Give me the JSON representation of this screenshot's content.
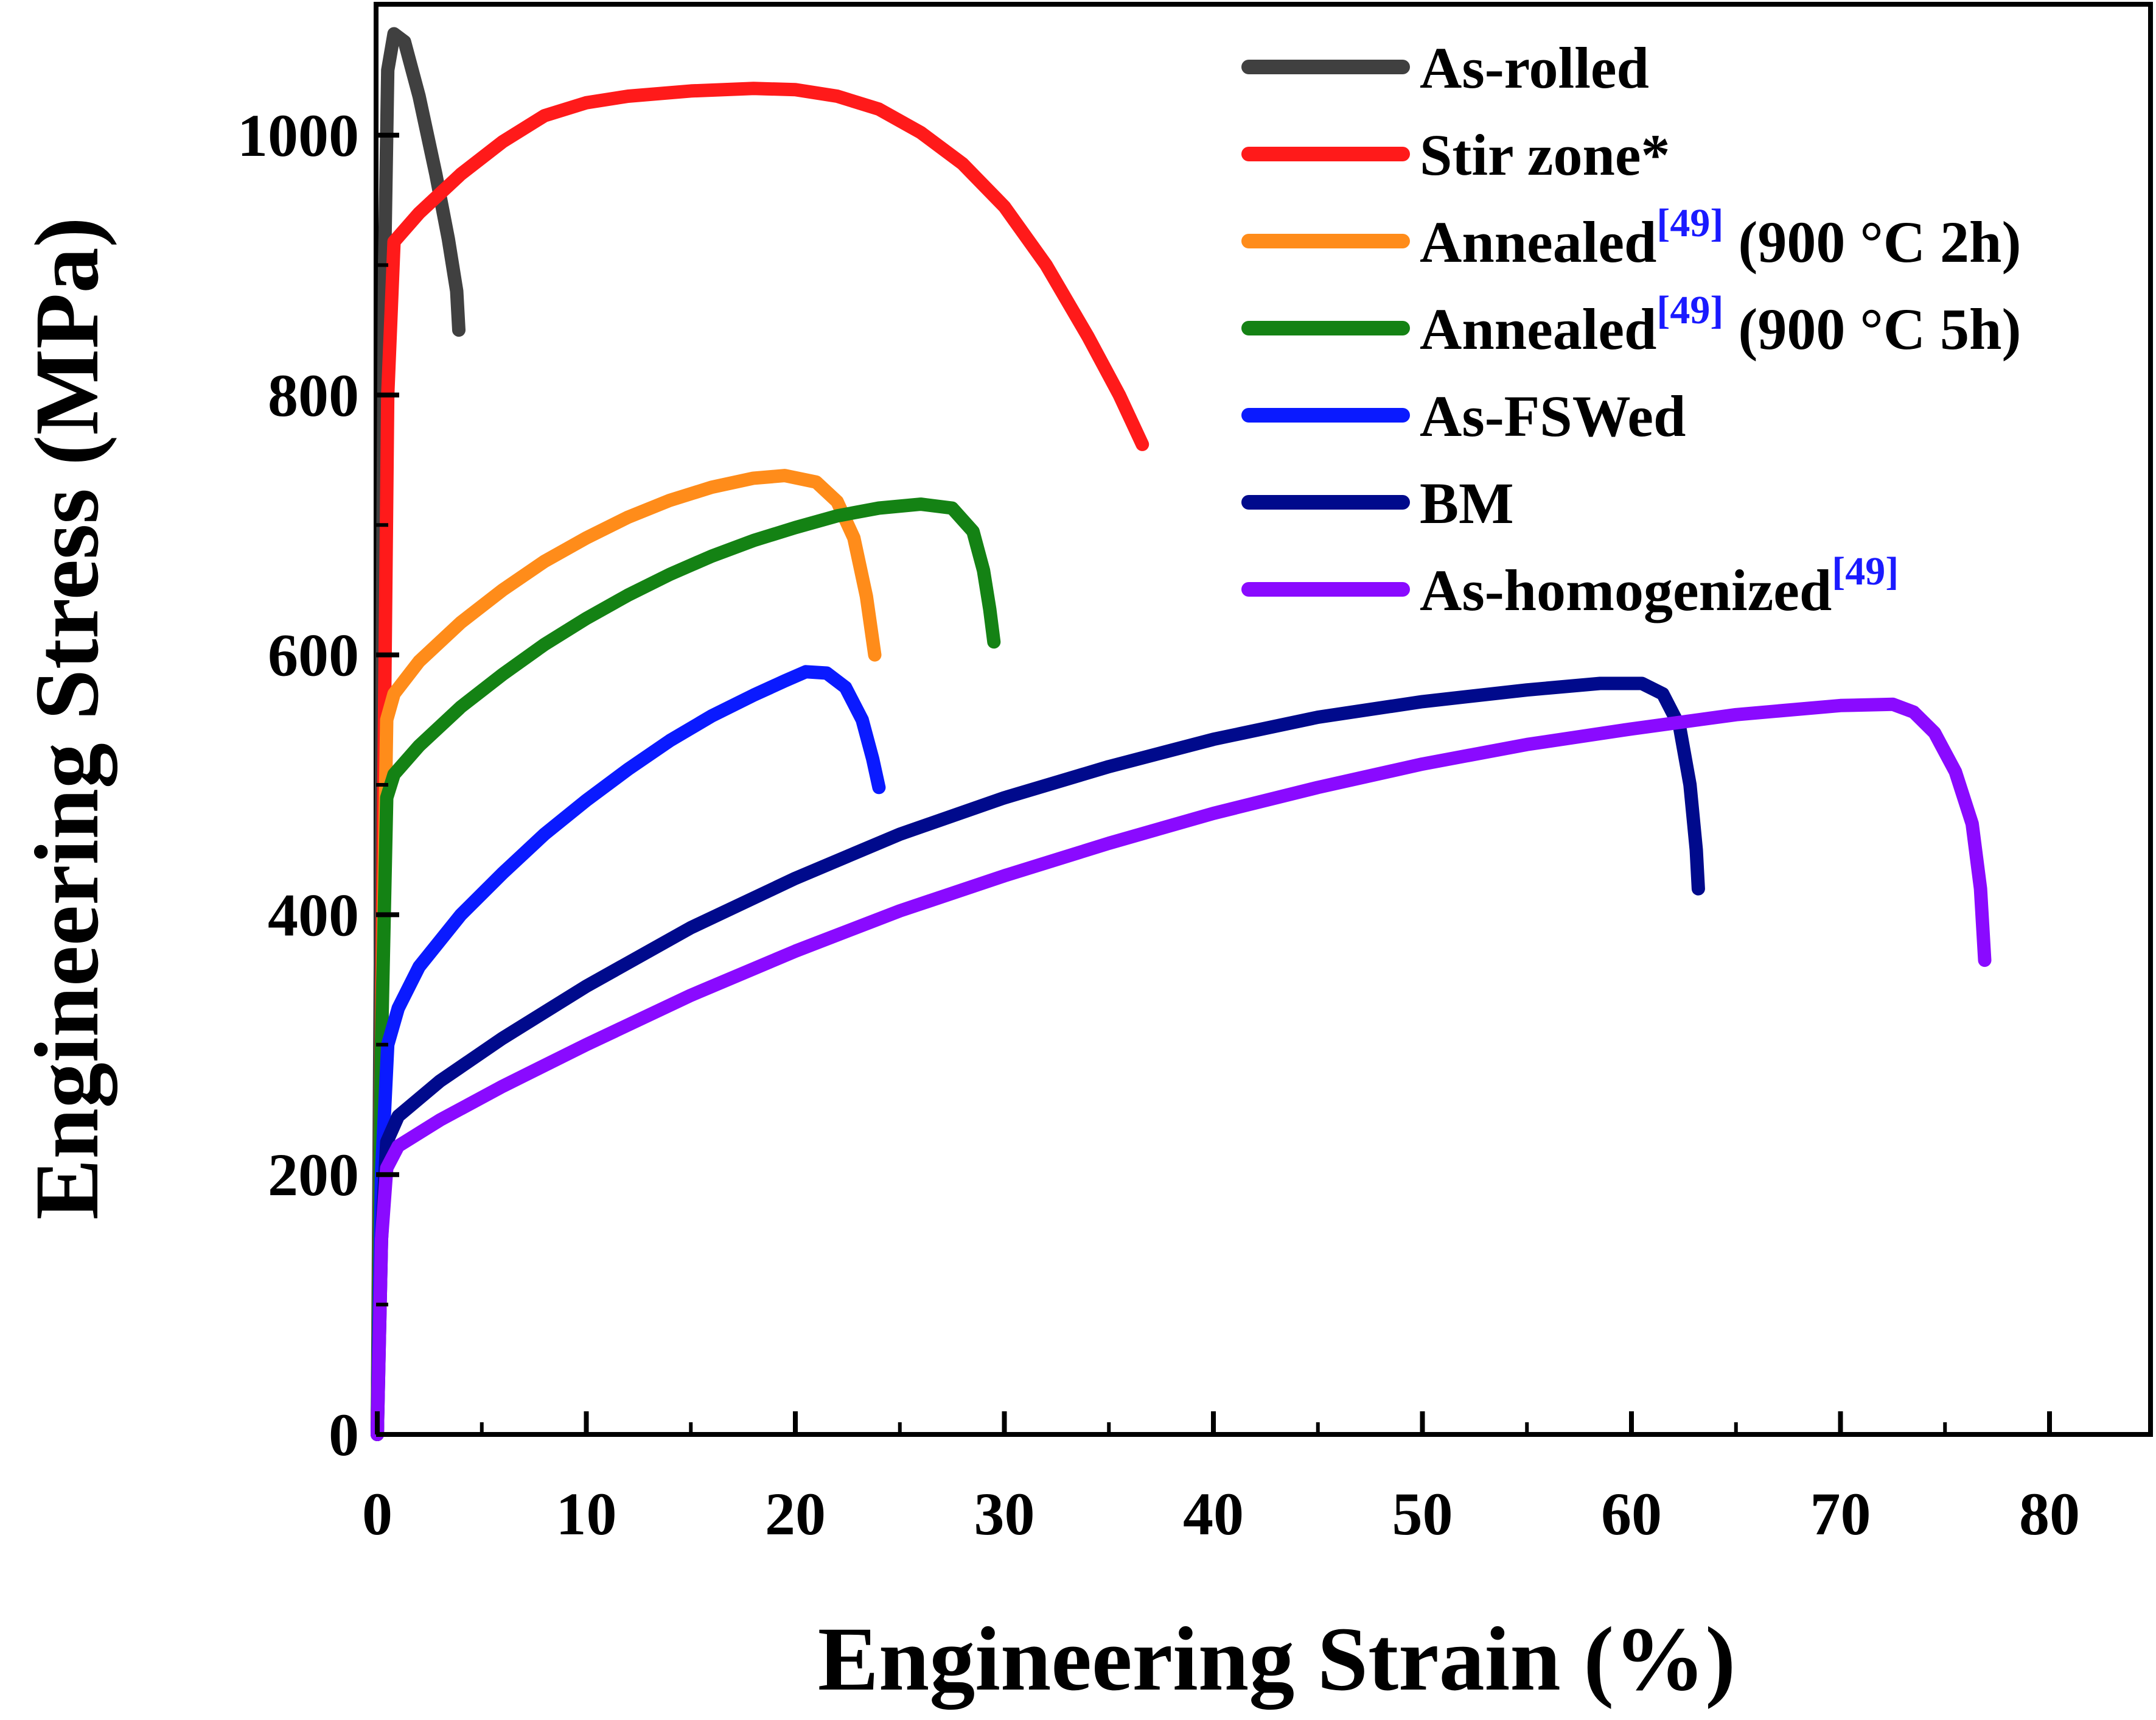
{
  "chart_data": {
    "type": "line",
    "xlabel": "Engineering Strain (%)",
    "ylabel": "Engineering Stress (MPa)",
    "xlim": [
      0,
      85
    ],
    "ylim": [
      0,
      1095
    ],
    "xticks": [
      0,
      10,
      20,
      30,
      40,
      50,
      60,
      70,
      80
    ],
    "yticks": [
      0,
      200,
      400,
      600,
      800,
      1000
    ],
    "grid": false,
    "legend_position": "top-right",
    "series": [
      {
        "name": "As-rolled",
        "name_parts": [
          "As-rolled",
          "",
          ""
        ],
        "color": "#404040",
        "points": [
          [
            0,
            0
          ],
          [
            0.2,
            500
          ],
          [
            0.35,
            900
          ],
          [
            0.5,
            1050
          ],
          [
            0.8,
            1078
          ],
          [
            1.3,
            1072
          ],
          [
            2,
            1030
          ],
          [
            2.8,
            970
          ],
          [
            3.4,
            920
          ],
          [
            3.8,
            880
          ],
          [
            3.9,
            850
          ]
        ]
      },
      {
        "name": "Stir zone*",
        "name_parts": [
          "Stir zone*",
          "",
          ""
        ],
        "color": "#ff1a1a",
        "points": [
          [
            0,
            0
          ],
          [
            0.25,
            400
          ],
          [
            0.5,
            800
          ],
          [
            0.8,
            918
          ],
          [
            2,
            940
          ],
          [
            4,
            970
          ],
          [
            6,
            995
          ],
          [
            8,
            1015
          ],
          [
            10,
            1025
          ],
          [
            12,
            1030
          ],
          [
            15,
            1034
          ],
          [
            18,
            1036
          ],
          [
            20,
            1035
          ],
          [
            22,
            1030
          ],
          [
            24,
            1020
          ],
          [
            26,
            1002
          ],
          [
            28,
            978
          ],
          [
            30,
            945
          ],
          [
            32,
            900
          ],
          [
            34,
            845
          ],
          [
            35.5,
            800
          ],
          [
            36.6,
            762
          ]
        ]
      },
      {
        "name": "Annealed[49] (900 °C 2h)",
        "name_parts": [
          "Annealed",
          "[49]",
          " (900 °C 2h)"
        ],
        "color": "#ff8c1a",
        "points": [
          [
            0,
            0
          ],
          [
            0.2,
            300
          ],
          [
            0.45,
            550
          ],
          [
            0.8,
            570
          ],
          [
            2,
            595
          ],
          [
            4,
            625
          ],
          [
            6,
            650
          ],
          [
            8,
            672
          ],
          [
            10,
            690
          ],
          [
            12,
            706
          ],
          [
            14,
            719
          ],
          [
            16,
            729
          ],
          [
            18,
            736
          ],
          [
            19.5,
            738
          ],
          [
            21,
            733
          ],
          [
            22,
            718
          ],
          [
            22.8,
            690
          ],
          [
            23.4,
            645
          ],
          [
            23.8,
            600
          ]
        ]
      },
      {
        "name": "Annealed[49] (900 °C 5h)",
        "name_parts": [
          "Annealed",
          "[49]",
          " (900 °C 5h)"
        ],
        "color": "#148214",
        "points": [
          [
            0,
            0
          ],
          [
            0.2,
            300
          ],
          [
            0.45,
            490
          ],
          [
            0.8,
            508
          ],
          [
            2,
            530
          ],
          [
            4,
            560
          ],
          [
            6,
            585
          ],
          [
            8,
            608
          ],
          [
            10,
            628
          ],
          [
            12,
            646
          ],
          [
            14,
            662
          ],
          [
            16,
            676
          ],
          [
            18,
            688
          ],
          [
            20,
            698
          ],
          [
            22,
            707
          ],
          [
            24,
            713
          ],
          [
            26,
            716
          ],
          [
            27.5,
            713
          ],
          [
            28.5,
            695
          ],
          [
            29,
            665
          ],
          [
            29.3,
            635
          ],
          [
            29.5,
            610
          ]
        ]
      },
      {
        "name": "As-FSWed",
        "name_parts": [
          "As-FSWed",
          "",
          ""
        ],
        "color": "#0a1aff",
        "points": [
          [
            0,
            0
          ],
          [
            0.2,
            200
          ],
          [
            0.5,
            300
          ],
          [
            1,
            328
          ],
          [
            2,
            360
          ],
          [
            4,
            400
          ],
          [
            6,
            432
          ],
          [
            8,
            462
          ],
          [
            10,
            488
          ],
          [
            12,
            512
          ],
          [
            14,
            534
          ],
          [
            16,
            553
          ],
          [
            18,
            569
          ],
          [
            19.5,
            580
          ],
          [
            20.5,
            587
          ],
          [
            21.5,
            586
          ],
          [
            22.4,
            575
          ],
          [
            23.2,
            550
          ],
          [
            23.7,
            520
          ],
          [
            24,
            498
          ]
        ]
      },
      {
        "name": "BM",
        "name_parts": [
          "BM",
          "",
          ""
        ],
        "color": "#000a8c",
        "points": [
          [
            0,
            0
          ],
          [
            0.2,
            150
          ],
          [
            0.45,
            225
          ],
          [
            1,
            245
          ],
          [
            3,
            272
          ],
          [
            6,
            305
          ],
          [
            10,
            345
          ],
          [
            15,
            390
          ],
          [
            20,
            428
          ],
          [
            25,
            462
          ],
          [
            30,
            490
          ],
          [
            35,
            514
          ],
          [
            40,
            535
          ],
          [
            45,
            552
          ],
          [
            50,
            564
          ],
          [
            55,
            573
          ],
          [
            58.5,
            578
          ],
          [
            60.5,
            578
          ],
          [
            61.5,
            570
          ],
          [
            62.3,
            545
          ],
          [
            62.8,
            500
          ],
          [
            63.1,
            450
          ],
          [
            63.2,
            420
          ]
        ]
      },
      {
        "name": "As-homogenized[49]",
        "name_parts": [
          "As-homogenized",
          "[49]",
          ""
        ],
        "color": "#8a0aff",
        "points": [
          [
            0,
            0
          ],
          [
            0.2,
            150
          ],
          [
            0.45,
            205
          ],
          [
            1,
            222
          ],
          [
            3,
            242
          ],
          [
            6,
            268
          ],
          [
            10,
            300
          ],
          [
            15,
            338
          ],
          [
            20,
            372
          ],
          [
            25,
            403
          ],
          [
            30,
            430
          ],
          [
            35,
            455
          ],
          [
            40,
            478
          ],
          [
            45,
            498
          ],
          [
            50,
            516
          ],
          [
            55,
            531
          ],
          [
            60,
            543
          ],
          [
            65,
            554
          ],
          [
            70,
            561
          ],
          [
            72.5,
            562
          ],
          [
            73.5,
            556
          ],
          [
            74.5,
            540
          ],
          [
            75.5,
            510
          ],
          [
            76.3,
            470
          ],
          [
            76.7,
            420
          ],
          [
            76.9,
            365
          ]
        ]
      }
    ]
  }
}
